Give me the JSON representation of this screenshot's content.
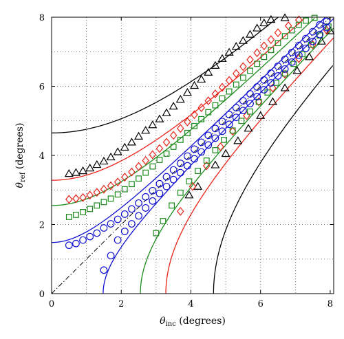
{
  "chart_data": {
    "type": "scatter",
    "title": "",
    "xlabel": {
      "symbol": "θ",
      "subscript": "inc",
      "unit": " (degrees)"
    },
    "ylabel": {
      "symbol": "θ",
      "subscript": "ref",
      "unit": " (degrees)"
    },
    "xlim": [
      0,
      8.1
    ],
    "ylim": [
      0,
      8
    ],
    "xticks": [
      0,
      2,
      4,
      6,
      8
    ],
    "yticks": [
      0,
      2,
      4,
      6,
      8
    ],
    "grid": true,
    "grid_style": "dotted",
    "colors": {
      "black": "#000000",
      "red": "#e8231a",
      "green": "#1a8a1a",
      "blue": "#1010d0"
    },
    "reference_line": {
      "style": "dash-dot",
      "color": "#000000",
      "x": [
        0,
        8
      ],
      "y": [
        0,
        8
      ]
    },
    "curves": [
      {
        "color": "#000000",
        "c": 4.65
      },
      {
        "color": "#e8231a",
        "c": 3.28
      },
      {
        "color": "#1a8a1a",
        "c": 2.55
      },
      {
        "color": "#1010d0",
        "c": 1.48
      }
    ],
    "series": [
      {
        "marker": "triangle",
        "color": "#000000",
        "points": [
          [
            0.5,
            3.47
          ],
          [
            0.7,
            3.5
          ],
          [
            0.9,
            3.55
          ],
          [
            1.1,
            3.63
          ],
          [
            1.3,
            3.73
          ],
          [
            1.5,
            3.83
          ],
          [
            1.7,
            3.95
          ],
          [
            1.9,
            4.1
          ],
          [
            2.1,
            4.23
          ],
          [
            2.3,
            4.38
          ],
          [
            2.5,
            4.55
          ],
          [
            2.7,
            4.72
          ],
          [
            2.9,
            4.88
          ],
          [
            3.1,
            5.05
          ],
          [
            3.3,
            5.23
          ],
          [
            3.5,
            5.42
          ],
          [
            3.7,
            5.62
          ],
          [
            3.9,
            5.82
          ],
          [
            4.1,
            6.02
          ],
          [
            4.3,
            6.2
          ],
          [
            4.5,
            6.4
          ],
          [
            4.7,
            6.6
          ],
          [
            4.9,
            6.8
          ],
          [
            5.1,
            6.98
          ],
          [
            5.3,
            7.15
          ],
          [
            5.5,
            7.32
          ],
          [
            5.7,
            7.5
          ],
          [
            5.9,
            7.68
          ],
          [
            6.1,
            7.83
          ],
          [
            6.3,
            7.93
          ],
          [
            6.7,
            7.98
          ],
          [
            3.95,
            2.85
          ],
          [
            4.2,
            3.1
          ],
          [
            4.7,
            3.72
          ],
          [
            5.0,
            4.05
          ],
          [
            5.35,
            4.42
          ],
          [
            5.65,
            4.78
          ],
          [
            6.0,
            5.15
          ],
          [
            6.35,
            5.55
          ],
          [
            6.7,
            5.95
          ],
          [
            7.05,
            6.45
          ],
          [
            7.4,
            6.85
          ],
          [
            7.75,
            7.3
          ],
          [
            8.0,
            7.6
          ]
        ]
      },
      {
        "marker": "diamond",
        "color": "#e8231a",
        "points": [
          [
            0.5,
            2.73
          ],
          [
            0.7,
            2.75
          ],
          [
            0.9,
            2.78
          ],
          [
            1.1,
            2.85
          ],
          [
            1.3,
            2.93
          ],
          [
            1.5,
            3.02
          ],
          [
            1.7,
            3.12
          ],
          [
            1.9,
            3.23
          ],
          [
            2.1,
            3.37
          ],
          [
            2.3,
            3.52
          ],
          [
            2.5,
            3.68
          ],
          [
            2.7,
            3.85
          ],
          [
            2.9,
            4.02
          ],
          [
            3.1,
            4.2
          ],
          [
            3.3,
            4.38
          ],
          [
            3.5,
            4.58
          ],
          [
            3.7,
            4.78
          ],
          [
            3.9,
            4.97
          ],
          [
            4.1,
            5.18
          ],
          [
            4.3,
            5.38
          ],
          [
            4.5,
            5.58
          ],
          [
            4.7,
            5.78
          ],
          [
            4.9,
            5.97
          ],
          [
            5.1,
            6.17
          ],
          [
            5.3,
            6.37
          ],
          [
            5.5,
            6.57
          ],
          [
            5.7,
            6.77
          ],
          [
            5.9,
            6.97
          ],
          [
            6.1,
            7.17
          ],
          [
            6.3,
            7.35
          ],
          [
            6.5,
            7.55
          ],
          [
            6.8,
            7.75
          ],
          [
            7.1,
            7.92
          ],
          [
            3.7,
            2.38
          ],
          [
            4.05,
            3.1
          ],
          [
            4.45,
            3.7
          ],
          [
            4.85,
            4.25
          ],
          [
            5.2,
            4.7
          ],
          [
            5.6,
            5.15
          ],
          [
            5.95,
            5.55
          ],
          [
            6.35,
            5.95
          ],
          [
            6.7,
            6.35
          ],
          [
            7.1,
            6.8
          ],
          [
            7.5,
            7.2
          ],
          [
            7.9,
            7.62
          ]
        ]
      },
      {
        "marker": "square",
        "color": "#1a8a1a",
        "points": [
          [
            0.5,
            2.22
          ],
          [
            0.7,
            2.28
          ],
          [
            0.9,
            2.36
          ],
          [
            1.1,
            2.45
          ],
          [
            1.3,
            2.55
          ],
          [
            1.5,
            2.65
          ],
          [
            1.7,
            2.75
          ],
          [
            1.9,
            2.87
          ],
          [
            2.1,
            3.02
          ],
          [
            2.3,
            3.17
          ],
          [
            2.5,
            3.33
          ],
          [
            2.7,
            3.5
          ],
          [
            2.9,
            3.68
          ],
          [
            3.1,
            3.87
          ],
          [
            3.3,
            4.05
          ],
          [
            3.5,
            4.25
          ],
          [
            3.7,
            4.45
          ],
          [
            3.9,
            4.65
          ],
          [
            4.1,
            4.85
          ],
          [
            4.3,
            5.05
          ],
          [
            4.5,
            5.25
          ],
          [
            4.7,
            5.45
          ],
          [
            4.9,
            5.65
          ],
          [
            5.1,
            5.85
          ],
          [
            5.3,
            6.05
          ],
          [
            5.5,
            6.25
          ],
          [
            5.7,
            6.45
          ],
          [
            5.9,
            6.65
          ],
          [
            6.1,
            6.85
          ],
          [
            6.3,
            7.05
          ],
          [
            6.5,
            7.25
          ],
          [
            6.7,
            7.45
          ],
          [
            6.9,
            7.62
          ],
          [
            7.1,
            7.78
          ],
          [
            7.3,
            7.9
          ],
          [
            7.55,
            7.98
          ],
          [
            3.0,
            1.75
          ],
          [
            3.2,
            2.1
          ],
          [
            3.45,
            2.55
          ],
          [
            3.7,
            2.92
          ],
          [
            3.95,
            3.25
          ],
          [
            4.2,
            3.55
          ],
          [
            4.45,
            3.85
          ],
          [
            4.7,
            4.15
          ],
          [
            4.95,
            4.45
          ],
          [
            5.2,
            4.72
          ],
          [
            5.45,
            5.0
          ],
          [
            5.7,
            5.27
          ],
          [
            5.95,
            5.55
          ],
          [
            6.2,
            5.82
          ],
          [
            6.45,
            6.1
          ],
          [
            6.7,
            6.37
          ],
          [
            6.95,
            6.65
          ],
          [
            7.2,
            6.93
          ],
          [
            7.45,
            7.2
          ],
          [
            7.7,
            7.47
          ],
          [
            7.95,
            7.73
          ]
        ]
      },
      {
        "marker": "circle",
        "color": "#1010d0",
        "points": [
          [
            1.5,
            0.68
          ],
          [
            1.7,
            1.1
          ],
          [
            0.5,
            1.4
          ],
          [
            0.7,
            1.45
          ],
          [
            0.9,
            1.55
          ],
          [
            1.1,
            1.65
          ],
          [
            1.3,
            1.75
          ],
          [
            1.5,
            1.9
          ],
          [
            1.7,
            2.02
          ],
          [
            1.9,
            2.15
          ],
          [
            2.1,
            2.3
          ],
          [
            2.3,
            2.45
          ],
          [
            2.5,
            2.62
          ],
          [
            2.7,
            2.8
          ],
          [
            2.9,
            2.98
          ],
          [
            3.1,
            3.18
          ],
          [
            3.3,
            3.38
          ],
          [
            3.5,
            3.58
          ],
          [
            3.7,
            3.77
          ],
          [
            3.9,
            3.98
          ],
          [
            4.1,
            4.18
          ],
          [
            4.3,
            4.38
          ],
          [
            4.5,
            4.58
          ],
          [
            4.7,
            4.78
          ],
          [
            4.9,
            4.98
          ],
          [
            5.1,
            5.18
          ],
          [
            5.3,
            5.38
          ],
          [
            5.5,
            5.58
          ],
          [
            5.7,
            5.78
          ],
          [
            5.9,
            5.98
          ],
          [
            6.1,
            6.18
          ],
          [
            6.3,
            6.38
          ],
          [
            6.5,
            6.58
          ],
          [
            6.7,
            6.78
          ],
          [
            6.9,
            6.98
          ],
          [
            7.1,
            7.18
          ],
          [
            7.3,
            7.38
          ],
          [
            7.5,
            7.58
          ],
          [
            7.7,
            7.78
          ],
          [
            7.9,
            7.88
          ],
          [
            1.9,
            1.55
          ],
          [
            2.1,
            1.8
          ],
          [
            2.3,
            2.02
          ],
          [
            2.5,
            2.25
          ],
          [
            2.7,
            2.48
          ],
          [
            2.9,
            2.68
          ],
          [
            3.1,
            2.9
          ],
          [
            3.3,
            3.1
          ],
          [
            3.5,
            3.3
          ],
          [
            3.7,
            3.5
          ],
          [
            3.9,
            3.7
          ],
          [
            4.1,
            3.9
          ],
          [
            4.3,
            4.1
          ],
          [
            4.5,
            4.3
          ],
          [
            4.7,
            4.5
          ],
          [
            4.9,
            4.7
          ],
          [
            5.1,
            4.9
          ],
          [
            5.3,
            5.1
          ],
          [
            5.5,
            5.3
          ],
          [
            5.7,
            5.5
          ],
          [
            5.9,
            5.7
          ],
          [
            6.1,
            5.9
          ],
          [
            6.3,
            6.1
          ],
          [
            6.5,
            6.3
          ],
          [
            6.7,
            6.5
          ],
          [
            6.9,
            6.7
          ],
          [
            7.1,
            6.9
          ],
          [
            7.3,
            7.1
          ],
          [
            7.5,
            7.3
          ],
          [
            7.7,
            7.5
          ],
          [
            7.9,
            7.7
          ]
        ]
      }
    ]
  }
}
